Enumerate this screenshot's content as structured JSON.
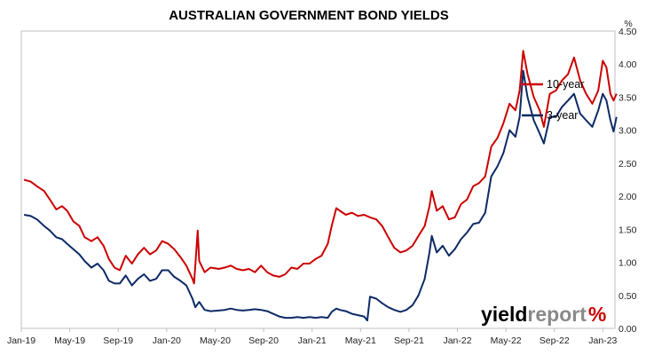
{
  "chart_data": {
    "type": "line",
    "title": "AUSTRALIAN GOVERNMENT BOND YIELDS",
    "ylabel": "%",
    "ylim": [
      0,
      4.5
    ],
    "yticks": [
      "0.00",
      "0.50",
      "1.00",
      "1.50",
      "2.00",
      "2.50",
      "3.00",
      "3.50",
      "4.00",
      "4.50"
    ],
    "xlim": [
      "2019-01",
      "2023-02"
    ],
    "xticks": [
      "Jan-19",
      "May-19",
      "Sep-19",
      "Jan-20",
      "May-20",
      "Sep-20",
      "Jan-21",
      "May-21",
      "Sep-21",
      "Jan-22",
      "May-22",
      "Sep-22",
      "Jan-23"
    ],
    "grid": false,
    "legend_position": "top-right (inside)",
    "series": [
      {
        "name": "10-year",
        "color": "#cc0000",
        "points": [
          [
            "2019-01-08",
            2.25
          ],
          [
            "2019-01-25",
            2.22
          ],
          [
            "2019-02-10",
            2.15
          ],
          [
            "2019-02-28",
            2.08
          ],
          [
            "2019-03-12",
            1.95
          ],
          [
            "2019-03-28",
            1.8
          ],
          [
            "2019-04-12",
            1.85
          ],
          [
            "2019-04-25",
            1.78
          ],
          [
            "2019-05-10",
            1.62
          ],
          [
            "2019-05-25",
            1.55
          ],
          [
            "2019-06-08",
            1.38
          ],
          [
            "2019-06-25",
            1.32
          ],
          [
            "2019-07-10",
            1.38
          ],
          [
            "2019-07-25",
            1.25
          ],
          [
            "2019-08-08",
            1.05
          ],
          [
            "2019-08-22",
            0.92
          ],
          [
            "2019-09-05",
            0.88
          ],
          [
            "2019-09-20",
            1.1
          ],
          [
            "2019-10-05",
            0.98
          ],
          [
            "2019-10-20",
            1.12
          ],
          [
            "2019-11-05",
            1.22
          ],
          [
            "2019-11-20",
            1.12
          ],
          [
            "2019-12-05",
            1.18
          ],
          [
            "2019-12-20",
            1.32
          ],
          [
            "2020-01-05",
            1.28
          ],
          [
            "2020-01-20",
            1.2
          ],
          [
            "2020-02-05",
            1.08
          ],
          [
            "2020-02-20",
            0.95
          ],
          [
            "2020-03-05",
            0.75
          ],
          [
            "2020-03-09",
            0.68
          ],
          [
            "2020-03-18",
            1.48
          ],
          [
            "2020-03-22",
            1.02
          ],
          [
            "2020-04-05",
            0.85
          ],
          [
            "2020-04-20",
            0.92
          ],
          [
            "2020-05-10",
            0.9
          ],
          [
            "2020-05-25",
            0.92
          ],
          [
            "2020-06-10",
            0.95
          ],
          [
            "2020-06-25",
            0.9
          ],
          [
            "2020-07-10",
            0.88
          ],
          [
            "2020-07-25",
            0.9
          ],
          [
            "2020-08-10",
            0.85
          ],
          [
            "2020-08-25",
            0.95
          ],
          [
            "2020-09-10",
            0.85
          ],
          [
            "2020-09-25",
            0.8
          ],
          [
            "2020-10-10",
            0.78
          ],
          [
            "2020-10-25",
            0.82
          ],
          [
            "2020-11-10",
            0.92
          ],
          [
            "2020-11-25",
            0.9
          ],
          [
            "2020-12-10",
            0.98
          ],
          [
            "2020-12-25",
            0.98
          ],
          [
            "2021-01-10",
            1.05
          ],
          [
            "2021-01-25",
            1.1
          ],
          [
            "2021-02-10",
            1.28
          ],
          [
            "2021-02-20",
            1.55
          ],
          [
            "2021-03-01",
            1.82
          ],
          [
            "2021-03-10",
            1.78
          ],
          [
            "2021-03-25",
            1.72
          ],
          [
            "2021-04-10",
            1.75
          ],
          [
            "2021-04-25",
            1.7
          ],
          [
            "2021-05-10",
            1.72
          ],
          [
            "2021-05-25",
            1.68
          ],
          [
            "2021-06-10",
            1.65
          ],
          [
            "2021-06-25",
            1.55
          ],
          [
            "2021-07-10",
            1.38
          ],
          [
            "2021-07-25",
            1.22
          ],
          [
            "2021-08-10",
            1.15
          ],
          [
            "2021-08-25",
            1.18
          ],
          [
            "2021-09-10",
            1.25
          ],
          [
            "2021-09-25",
            1.4
          ],
          [
            "2021-10-10",
            1.55
          ],
          [
            "2021-10-22",
            1.85
          ],
          [
            "2021-10-28",
            2.08
          ],
          [
            "2021-11-10",
            1.78
          ],
          [
            "2021-11-25",
            1.85
          ],
          [
            "2021-12-10",
            1.65
          ],
          [
            "2021-12-25",
            1.68
          ],
          [
            "2022-01-10",
            1.88
          ],
          [
            "2022-01-25",
            1.95
          ],
          [
            "2022-02-10",
            2.15
          ],
          [
            "2022-02-25",
            2.2
          ],
          [
            "2022-03-10",
            2.3
          ],
          [
            "2022-03-25",
            2.75
          ],
          [
            "2022-04-10",
            2.88
          ],
          [
            "2022-04-25",
            3.1
          ],
          [
            "2022-05-10",
            3.4
          ],
          [
            "2022-05-25",
            3.3
          ],
          [
            "2022-06-05",
            3.6
          ],
          [
            "2022-06-14",
            4.2
          ],
          [
            "2022-06-25",
            3.85
          ],
          [
            "2022-07-10",
            3.5
          ],
          [
            "2022-07-25",
            3.3
          ],
          [
            "2022-08-05",
            3.05
          ],
          [
            "2022-08-20",
            3.55
          ],
          [
            "2022-09-05",
            3.6
          ],
          [
            "2022-09-20",
            3.75
          ],
          [
            "2022-10-05",
            3.85
          ],
          [
            "2022-10-20",
            4.1
          ],
          [
            "2022-11-05",
            3.75
          ],
          [
            "2022-11-20",
            3.55
          ],
          [
            "2022-12-05",
            3.4
          ],
          [
            "2022-12-20",
            3.6
          ],
          [
            "2023-01-01",
            4.05
          ],
          [
            "2023-01-10",
            3.95
          ],
          [
            "2023-01-20",
            3.55
          ],
          [
            "2023-01-28",
            3.45
          ],
          [
            "2023-02-05",
            3.55
          ]
        ]
      },
      {
        "name": "3-year",
        "color": "#0d2a66",
        "points": [
          [
            "2019-01-08",
            1.72
          ],
          [
            "2019-01-25",
            1.7
          ],
          [
            "2019-02-10",
            1.65
          ],
          [
            "2019-02-28",
            1.55
          ],
          [
            "2019-03-12",
            1.48
          ],
          [
            "2019-03-28",
            1.38
          ],
          [
            "2019-04-12",
            1.35
          ],
          [
            "2019-04-25",
            1.28
          ],
          [
            "2019-05-10",
            1.2
          ],
          [
            "2019-05-25",
            1.12
          ],
          [
            "2019-06-08",
            1.02
          ],
          [
            "2019-06-25",
            0.92
          ],
          [
            "2019-07-10",
            0.98
          ],
          [
            "2019-07-25",
            0.88
          ],
          [
            "2019-08-08",
            0.72
          ],
          [
            "2019-08-22",
            0.68
          ],
          [
            "2019-09-05",
            0.68
          ],
          [
            "2019-09-20",
            0.8
          ],
          [
            "2019-10-05",
            0.65
          ],
          [
            "2019-10-20",
            0.75
          ],
          [
            "2019-11-05",
            0.82
          ],
          [
            "2019-11-20",
            0.72
          ],
          [
            "2019-12-05",
            0.75
          ],
          [
            "2019-12-20",
            0.88
          ],
          [
            "2020-01-05",
            0.88
          ],
          [
            "2020-01-20",
            0.78
          ],
          [
            "2020-02-05",
            0.72
          ],
          [
            "2020-02-20",
            0.65
          ],
          [
            "2020-03-05",
            0.45
          ],
          [
            "2020-03-12",
            0.32
          ],
          [
            "2020-03-22",
            0.4
          ],
          [
            "2020-04-05",
            0.28
          ],
          [
            "2020-04-20",
            0.26
          ],
          [
            "2020-05-10",
            0.27
          ],
          [
            "2020-05-25",
            0.28
          ],
          [
            "2020-06-10",
            0.3
          ],
          [
            "2020-06-25",
            0.28
          ],
          [
            "2020-07-10",
            0.27
          ],
          [
            "2020-07-25",
            0.28
          ],
          [
            "2020-08-10",
            0.29
          ],
          [
            "2020-08-25",
            0.28
          ],
          [
            "2020-09-10",
            0.26
          ],
          [
            "2020-09-25",
            0.22
          ],
          [
            "2020-10-10",
            0.18
          ],
          [
            "2020-10-25",
            0.16
          ],
          [
            "2020-11-10",
            0.16
          ],
          [
            "2020-11-25",
            0.17
          ],
          [
            "2020-12-10",
            0.16
          ],
          [
            "2020-12-25",
            0.17
          ],
          [
            "2021-01-10",
            0.16
          ],
          [
            "2021-01-25",
            0.17
          ],
          [
            "2021-02-10",
            0.16
          ],
          [
            "2021-02-20",
            0.25
          ],
          [
            "2021-03-01",
            0.3
          ],
          [
            "2021-03-10",
            0.28
          ],
          [
            "2021-03-25",
            0.26
          ],
          [
            "2021-04-10",
            0.22
          ],
          [
            "2021-04-25",
            0.2
          ],
          [
            "2021-05-10",
            0.18
          ],
          [
            "2021-05-18",
            0.12
          ],
          [
            "2021-05-25",
            0.48
          ],
          [
            "2021-06-10",
            0.45
          ],
          [
            "2021-06-25",
            0.38
          ],
          [
            "2021-07-10",
            0.32
          ],
          [
            "2021-07-25",
            0.28
          ],
          [
            "2021-08-10",
            0.25
          ],
          [
            "2021-08-25",
            0.28
          ],
          [
            "2021-09-10",
            0.35
          ],
          [
            "2021-09-25",
            0.5
          ],
          [
            "2021-10-10",
            0.75
          ],
          [
            "2021-10-22",
            1.15
          ],
          [
            "2021-10-28",
            1.4
          ],
          [
            "2021-11-10",
            1.15
          ],
          [
            "2021-11-25",
            1.25
          ],
          [
            "2021-12-10",
            1.1
          ],
          [
            "2021-12-25",
            1.2
          ],
          [
            "2022-01-10",
            1.35
          ],
          [
            "2022-01-25",
            1.45
          ],
          [
            "2022-02-10",
            1.58
          ],
          [
            "2022-02-25",
            1.6
          ],
          [
            "2022-03-10",
            1.75
          ],
          [
            "2022-03-25",
            2.3
          ],
          [
            "2022-04-10",
            2.45
          ],
          [
            "2022-04-25",
            2.65
          ],
          [
            "2022-05-10",
            3.0
          ],
          [
            "2022-05-25",
            2.9
          ],
          [
            "2022-06-05",
            3.2
          ],
          [
            "2022-06-14",
            3.9
          ],
          [
            "2022-06-25",
            3.5
          ],
          [
            "2022-07-10",
            3.15
          ],
          [
            "2022-07-25",
            2.95
          ],
          [
            "2022-08-05",
            2.8
          ],
          [
            "2022-08-20",
            3.2
          ],
          [
            "2022-09-05",
            3.2
          ],
          [
            "2022-09-20",
            3.35
          ],
          [
            "2022-10-05",
            3.45
          ],
          [
            "2022-10-20",
            3.55
          ],
          [
            "2022-11-05",
            3.25
          ],
          [
            "2022-11-20",
            3.15
          ],
          [
            "2022-12-05",
            3.05
          ],
          [
            "2022-12-20",
            3.3
          ],
          [
            "2023-01-01",
            3.55
          ],
          [
            "2023-01-10",
            3.45
          ],
          [
            "2023-01-20",
            3.15
          ],
          [
            "2023-01-28",
            2.98
          ],
          [
            "2023-02-05",
            3.2
          ]
        ]
      }
    ]
  },
  "logo": {
    "word_a": "yield",
    "word_b": "report",
    "mark": "%"
  }
}
